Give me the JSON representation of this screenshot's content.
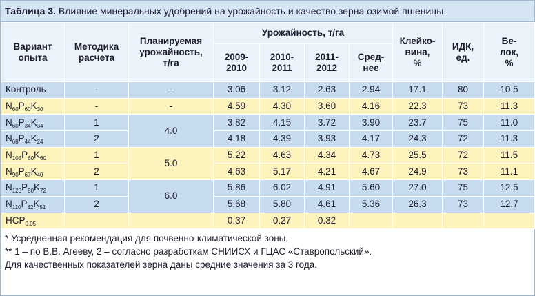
{
  "title": {
    "label": "Таблица 3.",
    "text": "Влияние минеральных удобрений на урожайность и качество зерна озимой пшеницы."
  },
  "header": {
    "variant": "Вариант\nопыта",
    "method": "Методика\nрасчета",
    "planned": "Планируемая\nурожайность,\nт/га",
    "yield": "Урожайность, т/га",
    "years": [
      "2009-\n2010",
      "2010-\n2011",
      "2011-\n2012",
      "Сред-\nнее"
    ],
    "gluten": "Клейко-\nвина,\n%",
    "idk": "ИДК,\nед.",
    "protein": "Бе-\nлок,\n%"
  },
  "rows": [
    {
      "variant": [
        "Контроль"
      ],
      "method": "-",
      "planned": "-",
      "yields": [
        "3.06",
        "3.12",
        "2.63",
        "2.94"
      ],
      "gluten": "17.1",
      "idk": "80",
      "protein": "10.5"
    },
    {
      "variant": [
        "N",
        "60",
        "P",
        "60",
        "K",
        "30"
      ],
      "method": "-",
      "planned": "-",
      "yields": [
        "4.59",
        "4.30",
        "3.60",
        "4.16"
      ],
      "gluten": "22.3",
      "idk": "73",
      "protein": "11.3"
    },
    {
      "variant": [
        "N",
        "60",
        "P",
        "34",
        "K",
        "34"
      ],
      "method": "1",
      "planned": "4.0",
      "yields": [
        "3.82",
        "4.15",
        "3.72",
        "3.90"
      ],
      "gluten": "23.7",
      "idk": "75",
      "protein": "11.0"
    },
    {
      "variant": [
        "N",
        "68",
        "P",
        "44",
        "K",
        "24"
      ],
      "method": "2",
      "yields": [
        "4.18",
        "4.39",
        "3.93",
        "4.17"
      ],
      "gluten": "24.3",
      "idk": "72",
      "protein": "11.3"
    },
    {
      "variant": [
        "N",
        "105",
        "P",
        "60",
        "K",
        "60"
      ],
      "method": "1",
      "planned": "5.0",
      "yields": [
        "5.22",
        "4.63",
        "4.34",
        "4.73"
      ],
      "gluten": "25.5",
      "idk": "72",
      "protein": "11.5"
    },
    {
      "variant": [
        "N",
        "90",
        "P",
        "67",
        "K",
        "40"
      ],
      "method": "2",
      "yields": [
        "4.63",
        "5.17",
        "4.21",
        "4.67"
      ],
      "gluten": "24.9",
      "idk": "73",
      "protein": "11.1"
    },
    {
      "variant": [
        "N",
        "126",
        "P",
        "80",
        "K",
        "72"
      ],
      "method": "1",
      "planned": "6.0",
      "yields": [
        "5.86",
        "6.02",
        "4.91",
        "5.60"
      ],
      "gluten": "27.0",
      "idk": "75",
      "protein": "12.5"
    },
    {
      "variant": [
        "N",
        "110",
        "P",
        "82",
        "K",
        "51"
      ],
      "method": "2",
      "yields": [
        "5.68",
        "5.80",
        "4.61",
        "5.36"
      ],
      "gluten": "26.3",
      "idk": "73",
      "protein": "12.7"
    },
    {
      "variant": [
        "НСР",
        "0.05"
      ],
      "yields": [
        "0.37",
        "0.27",
        "0.32"
      ]
    }
  ],
  "footnotes": [
    "* Усредненная рекомендация для почвенно-климатической зоны.",
    "** 1 – по В.В. Агееву, 2 – согласно разработкам СНИИСХ и ГЦАС «Ставропольский».",
    "Для качественных показателей зерна даны средние значения за 3 года."
  ]
}
